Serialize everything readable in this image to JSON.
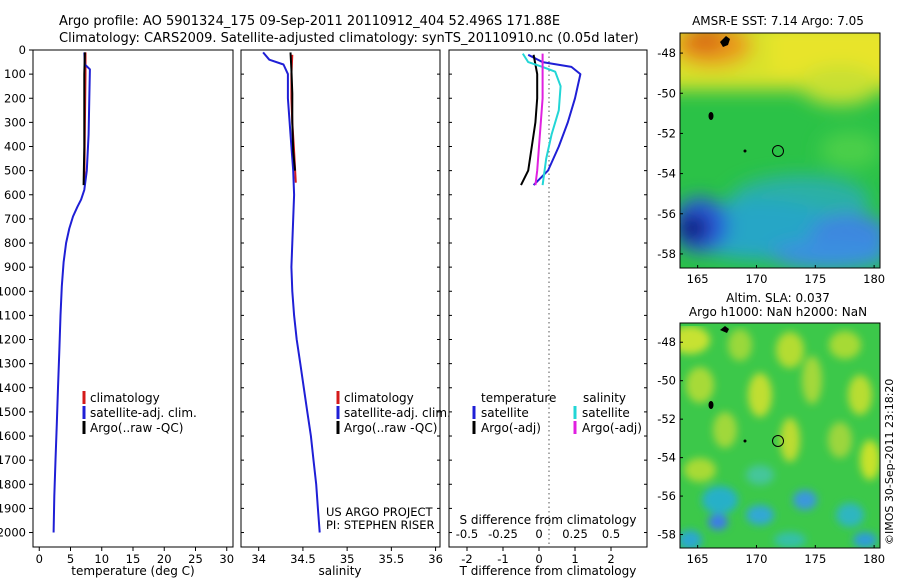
{
  "header": {
    "line1": "Argo profile: AO 5901324_175 09-Sep-2011 20110912_404 52.496S 171.88E",
    "line2": "Climatology: CARS2009. Satellite-adjusted climatology: synTS_20110910.nc (0.05d later)"
  },
  "colors": {
    "climatology": "#d41a1a",
    "satellite_adj": "#1f1fd6",
    "argo": "#000000",
    "sal_satellite": "#22d6d6",
    "sal_argo": "#e020e0"
  },
  "chart_data": [
    {
      "type": "line",
      "id": "temperature",
      "xlabel": "temperature (deg C)",
      "ylabel": "",
      "xlim": [
        -1,
        31
      ],
      "ylim": [
        2060,
        0
      ],
      "xticks": [
        "0",
        "5",
        "10",
        "15",
        "20",
        "25",
        "30"
      ],
      "yticks": [
        "0",
        "100",
        "200",
        "300",
        "400",
        "500",
        "600",
        "700",
        "800",
        "900",
        "1000",
        "1100",
        "1200",
        "1300",
        "1400",
        "1500",
        "1600",
        "1700",
        "1800",
        "1900",
        "2000"
      ],
      "legend": [
        "climatology",
        "satellite-adj. clim.",
        "Argo(..raw -QC)"
      ],
      "series": [
        {
          "name": "climatology",
          "color": "#d41a1a",
          "points": [
            [
              7.4,
              10
            ],
            [
              7.4,
              100
            ],
            [
              7.3,
              300
            ],
            [
              7.2,
              550
            ]
          ]
        },
        {
          "name": "satellite-adj. clim.",
          "color": "#1f1fd6",
          "points": [
            [
              7.2,
              10
            ],
            [
              7.3,
              60
            ],
            [
              8.1,
              80
            ],
            [
              8.0,
              200
            ],
            [
              7.9,
              350
            ],
            [
              7.6,
              500
            ],
            [
              7.2,
              580
            ],
            [
              6.7,
              620
            ],
            [
              6.1,
              650
            ],
            [
              5.4,
              690
            ],
            [
              4.8,
              740
            ],
            [
              4.3,
              800
            ],
            [
              3.9,
              880
            ],
            [
              3.6,
              980
            ],
            [
              3.4,
              1100
            ],
            [
              3.2,
              1250
            ],
            [
              3.0,
              1400
            ],
            [
              2.8,
              1550
            ],
            [
              2.6,
              1700
            ],
            [
              2.4,
              1850
            ],
            [
              2.3,
              2000
            ]
          ]
        },
        {
          "name": "Argo(..raw -QC)",
          "color": "#000000",
          "points": [
            [
              7.3,
              10
            ],
            [
              7.2,
              100
            ],
            [
              7.2,
              250
            ],
            [
              7.2,
              400
            ],
            [
              7.1,
              560
            ]
          ]
        }
      ]
    },
    {
      "type": "line",
      "id": "salinity",
      "xlabel": "salinity",
      "ylabel": "",
      "xlim": [
        33.8,
        36.05
      ],
      "ylim": [
        2060,
        0
      ],
      "xticks": [
        "34",
        "34.5",
        "35",
        "35.5",
        "36"
      ],
      "legend": [
        "climatology",
        "satellite-adj. clim.",
        "Argo(..raw -QC)"
      ],
      "annotation": [
        "US ARGO PROJECT",
        "PI: STEPHEN RISER"
      ],
      "series": [
        {
          "name": "climatology",
          "color": "#d41a1a",
          "points": [
            [
              34.38,
              20
            ],
            [
              34.37,
              100
            ],
            [
              34.37,
              200
            ],
            [
              34.38,
              300
            ],
            [
              34.4,
              420
            ],
            [
              34.42,
              550
            ]
          ]
        },
        {
          "name": "satellite-adj. clim.",
          "color": "#1f1fd6",
          "points": [
            [
              34.05,
              10
            ],
            [
              34.12,
              40
            ],
            [
              34.28,
              60
            ],
            [
              34.33,
              100
            ],
            [
              34.33,
              200
            ],
            [
              34.36,
              350
            ],
            [
              34.39,
              500
            ],
            [
              34.4,
              600
            ],
            [
              34.39,
              700
            ],
            [
              34.38,
              800
            ],
            [
              34.37,
              900
            ],
            [
              34.38,
              1000
            ],
            [
              34.4,
              1100
            ],
            [
              34.43,
              1200
            ],
            [
              34.47,
              1300
            ],
            [
              34.51,
              1400
            ],
            [
              34.55,
              1500
            ],
            [
              34.59,
              1600
            ],
            [
              34.62,
              1700
            ],
            [
              34.65,
              1800
            ],
            [
              34.67,
              1900
            ],
            [
              34.69,
              2000
            ]
          ]
        },
        {
          "name": "Argo(..raw -QC)",
          "color": "#000000",
          "points": [
            [
              34.36,
              10
            ],
            [
              34.37,
              80
            ],
            [
              34.38,
              180
            ],
            [
              34.38,
              300
            ],
            [
              34.39,
              420
            ],
            [
              34.41,
              500
            ]
          ]
        }
      ]
    },
    {
      "type": "line",
      "id": "difference",
      "xlabel": "T difference from climatology",
      "xlabel_top": "S difference from climatology",
      "xlim": [
        -2.5,
        3.0
      ],
      "ylim": [
        2060,
        0
      ],
      "xticks": [
        "-2",
        "-1",
        "0",
        "1",
        "2"
      ],
      "xticks_top": [
        "-0.5",
        "-0.25",
        "0",
        "0.25",
        "0.5"
      ],
      "legend_titles": [
        "temperature",
        "salinity"
      ],
      "legend": [
        "satellite",
        "Argo(-adj)",
        "satellite",
        "Argo(-adj)"
      ],
      "series": [
        {
          "name": "satellite",
          "group": "temperature",
          "color": "#1f1fd6",
          "points": [
            [
              -0.3,
              20
            ],
            [
              0.1,
              50
            ],
            [
              0.9,
              70
            ],
            [
              1.15,
              100
            ],
            [
              1.0,
              200
            ],
            [
              0.8,
              300
            ],
            [
              0.55,
              400
            ],
            [
              0.25,
              500
            ],
            [
              -0.15,
              560
            ]
          ]
        },
        {
          "name": "Argo(-adj)",
          "group": "temperature",
          "color": "#000000",
          "points": [
            [
              -0.15,
              20
            ],
            [
              -0.05,
              100
            ],
            [
              -0.05,
              200
            ],
            [
              -0.1,
              300
            ],
            [
              -0.2,
              400
            ],
            [
              -0.3,
              500
            ],
            [
              -0.5,
              560
            ]
          ]
        },
        {
          "name": "satellite",
          "group": "salinity",
          "color": "#22d6d6",
          "points": [
            [
              -0.45,
              15
            ],
            [
              -0.3,
              50
            ],
            [
              0.1,
              70
            ],
            [
              0.45,
              90
            ],
            [
              0.6,
              150
            ],
            [
              0.55,
              250
            ],
            [
              0.35,
              350
            ],
            [
              0.2,
              450
            ],
            [
              0.1,
              560
            ]
          ]
        },
        {
          "name": "Argo(-adj)",
          "group": "salinity",
          "color": "#e020e0",
          "points": [
            [
              0.1,
              15
            ],
            [
              0.1,
              100
            ],
            [
              0.1,
              200
            ],
            [
              0.05,
              300
            ],
            [
              0.0,
              400
            ],
            [
              -0.05,
              500
            ],
            [
              -0.1,
              560
            ]
          ]
        }
      ]
    },
    {
      "type": "heatmap",
      "id": "map-sst",
      "title": "AMSR-E SST: 7.14 Argo: 7.05",
      "xticks": [
        "165",
        "170",
        "175",
        "180"
      ],
      "yticks": [
        "-48",
        "-50",
        "-52",
        "-54",
        "-56",
        "-58"
      ],
      "xlim": [
        163.5,
        180.5
      ],
      "ylim": [
        -58.7,
        -47
      ]
    },
    {
      "type": "heatmap",
      "id": "map-sla",
      "title": "Altim. SLA: 0.037",
      "subtitle": "Argo h1000: NaN h2000: NaN",
      "xticks": [
        "165",
        "170",
        "175",
        "180"
      ],
      "yticks": [
        "-48",
        "-50",
        "-52",
        "-54",
        "-56",
        "-58"
      ],
      "xlim": [
        163.5,
        180.5
      ],
      "ylim": [
        -58.7,
        -47
      ]
    }
  ],
  "watermark": "©IMOS 30-Sep-2011 23:18:20"
}
